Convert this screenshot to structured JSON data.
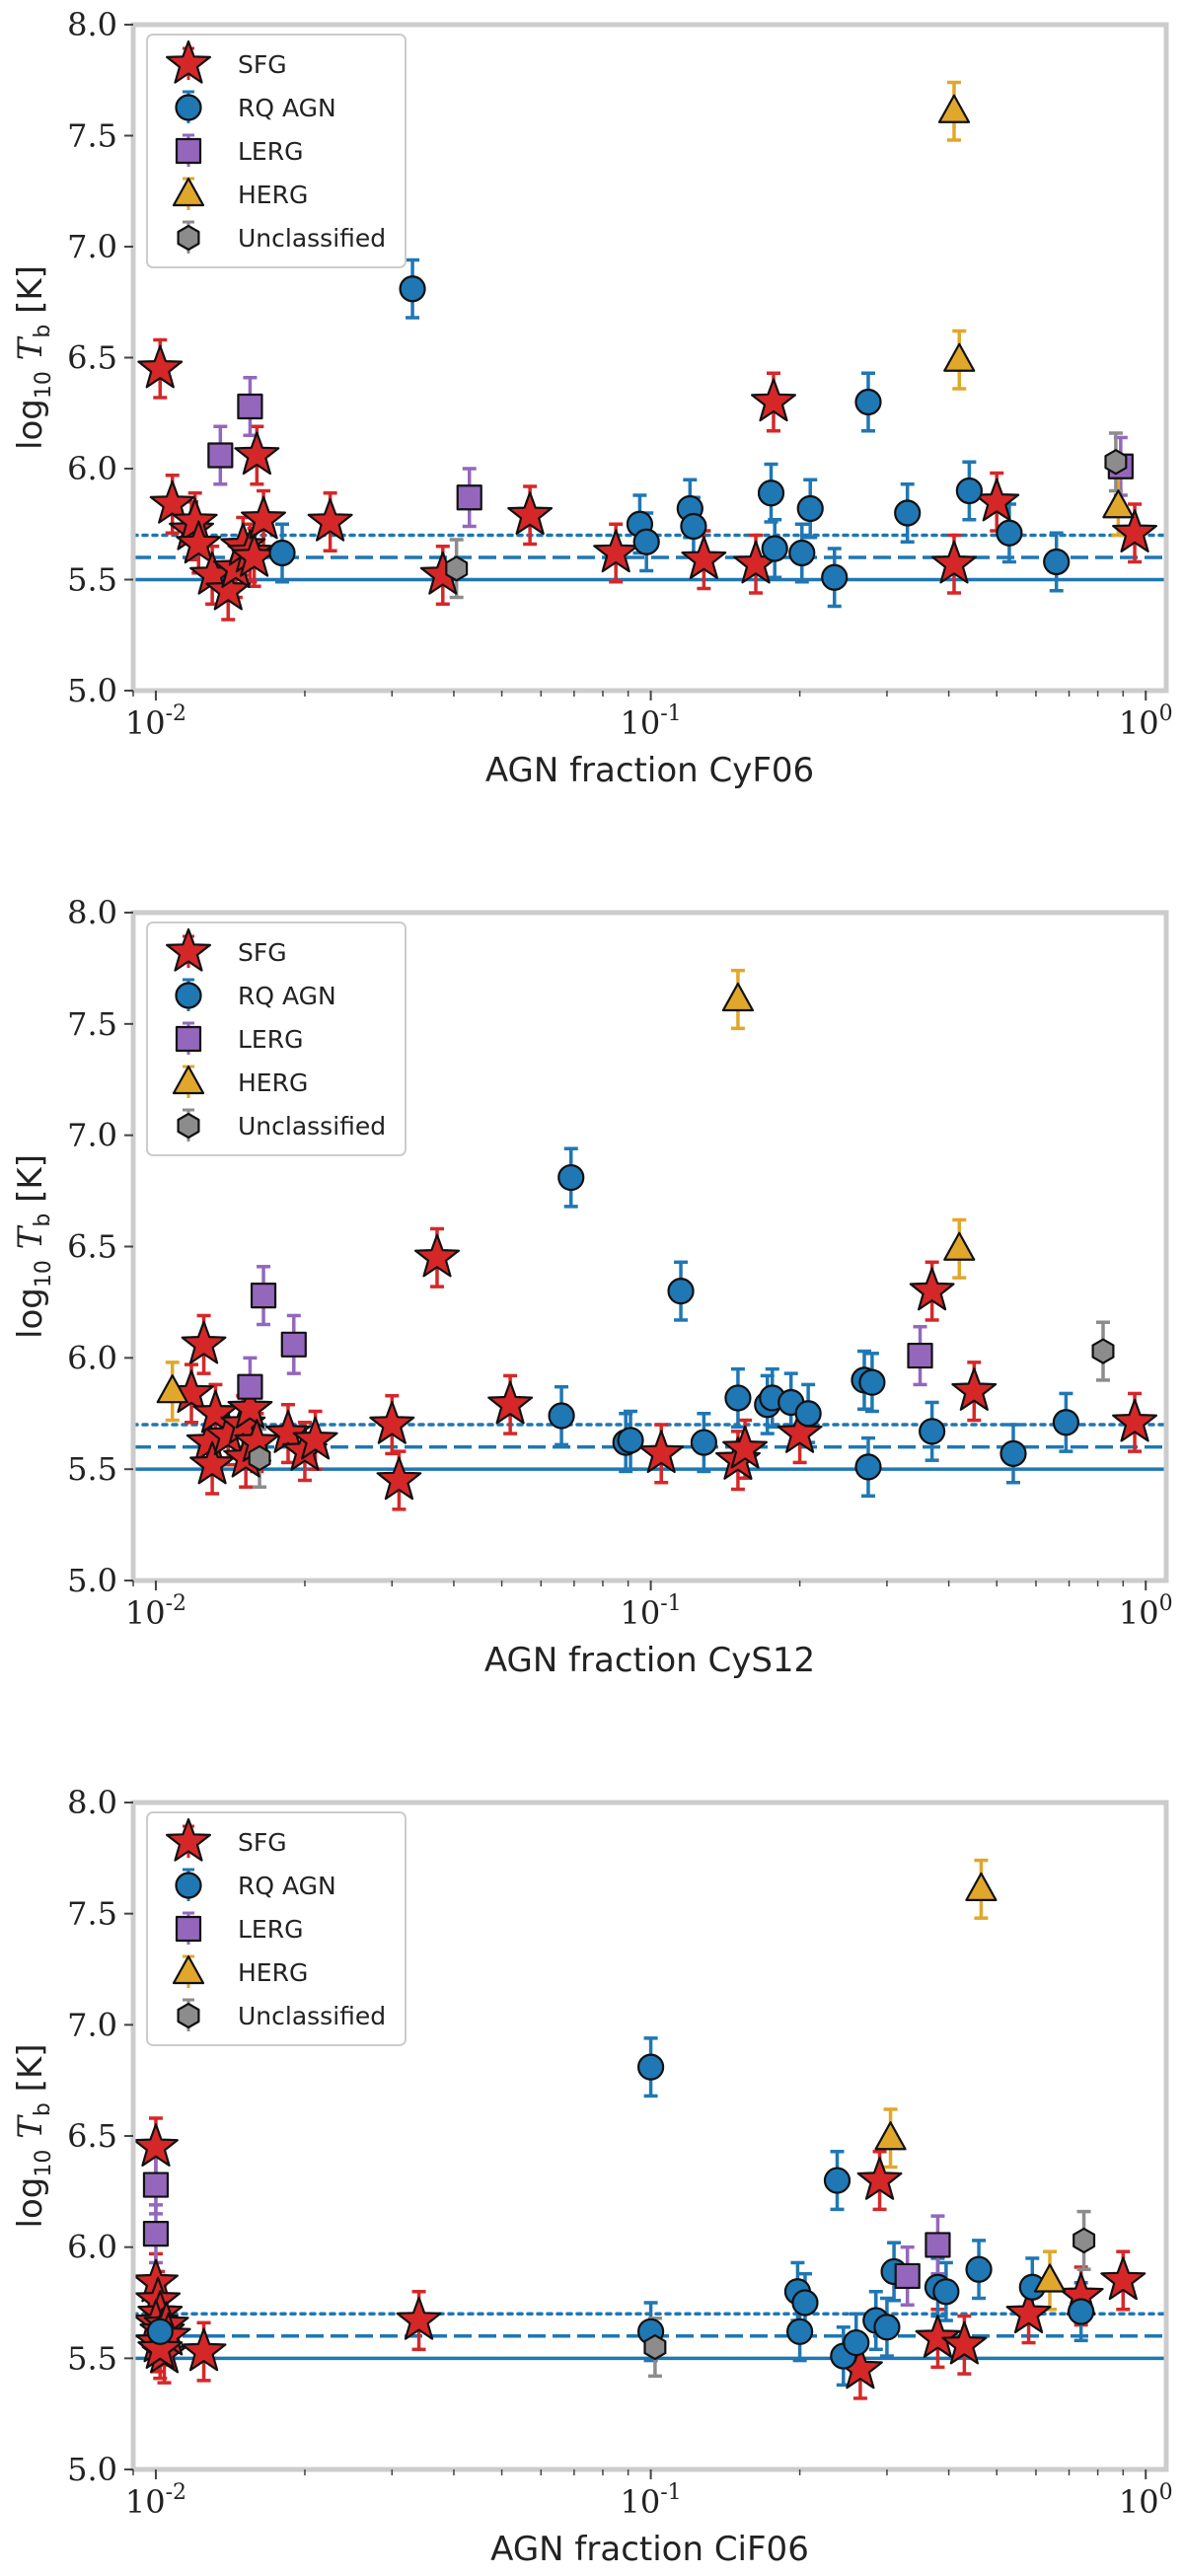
{
  "categories": {
    "SFG": {
      "label": "SFG",
      "color": "#d62728",
      "marker": "star"
    },
    "RQ": {
      "label": "RQ AGN",
      "color": "#1f77b4",
      "marker": "circle"
    },
    "LERG": {
      "label": "LERG",
      "color": "#9467bd",
      "marker": "square"
    },
    "HERG": {
      "label": "HERG",
      "color": "#e1a72b",
      "marker": "triangle"
    },
    "Unc": {
      "label": "Unclassified",
      "color": "#8c8c8c",
      "marker": "hexagon"
    }
  },
  "legend_order": [
    "SFG",
    "RQ",
    "LERG",
    "HERG",
    "Unc"
  ],
  "chart_data": [
    {
      "type": "scatter",
      "xlabel": "AGN fraction CyF06",
      "ylabel": "log10 Tb [K]",
      "xscale": "log",
      "xlim": [
        0.009,
        1.1
      ],
      "ylim": [
        5.0,
        8.0
      ],
      "xticks": [
        "10^-2",
        "10^-1",
        "10^0"
      ],
      "yticks": [
        "5.0",
        "5.5",
        "6.0",
        "6.5",
        "7.0",
        "7.5",
        "8.0"
      ],
      "hlines": [
        {
          "y": 5.5,
          "style": "solid"
        },
        {
          "y": 5.6,
          "style": "dashed"
        },
        {
          "y": 5.7,
          "style": "dotted"
        }
      ],
      "legend": "top-left",
      "series": [
        {
          "cat": "SFG",
          "points": [
            [
              0.0102,
              6.45
            ],
            [
              0.0108,
              5.84
            ],
            [
              0.0118,
              5.72
            ],
            [
              0.012,
              5.76
            ],
            [
              0.0122,
              5.66
            ],
            [
              0.013,
              5.52
            ],
            [
              0.014,
              5.45
            ],
            [
              0.0145,
              5.55
            ],
            [
              0.015,
              5.65
            ],
            [
              0.0155,
              5.62
            ],
            [
              0.016,
              6.06
            ],
            [
              0.0165,
              5.77
            ],
            [
              0.0158,
              5.6
            ],
            [
              0.0225,
              5.76
            ],
            [
              0.038,
              5.52
            ],
            [
              0.057,
              5.79
            ],
            [
              0.085,
              5.62
            ],
            [
              0.128,
              5.59
            ],
            [
              0.163,
              5.57
            ],
            [
              0.177,
              6.3
            ],
            [
              0.41,
              5.57
            ],
            [
              0.5,
              5.85
            ],
            [
              0.95,
              5.71
            ]
          ]
        },
        {
          "cat": "RQ",
          "points": [
            [
              0.018,
              5.62
            ],
            [
              0.033,
              6.81
            ],
            [
              0.095,
              5.75
            ],
            [
              0.098,
              5.67
            ],
            [
              0.12,
              5.82
            ],
            [
              0.122,
              5.74
            ],
            [
              0.175,
              5.89
            ],
            [
              0.178,
              5.64
            ],
            [
              0.202,
              5.62
            ],
            [
              0.21,
              5.82
            ],
            [
              0.235,
              5.51
            ],
            [
              0.275,
              6.3
            ],
            [
              0.33,
              5.8
            ],
            [
              0.44,
              5.9
            ],
            [
              0.53,
              5.71
            ],
            [
              0.66,
              5.58
            ]
          ]
        },
        {
          "cat": "LERG",
          "points": [
            [
              0.0135,
              6.06
            ],
            [
              0.0155,
              6.28
            ],
            [
              0.043,
              5.87
            ],
            [
              0.89,
              6.01
            ]
          ]
        },
        {
          "cat": "HERG",
          "points": [
            [
              0.41,
              7.61
            ],
            [
              0.42,
              6.49
            ],
            [
              0.88,
              5.83
            ]
          ]
        },
        {
          "cat": "Unc",
          "points": [
            [
              0.0405,
              5.55
            ],
            [
              0.87,
              6.03
            ]
          ]
        }
      ]
    },
    {
      "type": "scatter",
      "xlabel": "AGN fraction CyS12",
      "ylabel": "log10 Tb [K]",
      "xscale": "log",
      "xlim": [
        0.009,
        1.1
      ],
      "ylim": [
        5.0,
        8.0
      ],
      "xticks": [
        "10^-2",
        "10^-1",
        "10^0"
      ],
      "yticks": [
        "5.0",
        "5.5",
        "6.0",
        "6.5",
        "7.0",
        "7.5",
        "8.0"
      ],
      "hlines": [
        {
          "y": 5.5,
          "style": "solid"
        },
        {
          "y": 5.6,
          "style": "dashed"
        },
        {
          "y": 5.7,
          "style": "dotted"
        }
      ],
      "legend": "top-left",
      "series": [
        {
          "cat": "SFG",
          "points": [
            [
              0.0118,
              5.84
            ],
            [
              0.0125,
              6.06
            ],
            [
              0.0128,
              5.62
            ],
            [
              0.013,
              5.52
            ],
            [
              0.0132,
              5.75
            ],
            [
              0.014,
              5.65
            ],
            [
              0.015,
              5.7
            ],
            [
              0.0152,
              5.55
            ],
            [
              0.0155,
              5.77
            ],
            [
              0.016,
              5.62
            ],
            [
              0.0185,
              5.66
            ],
            [
              0.02,
              5.58
            ],
            [
              0.021,
              5.63
            ],
            [
              0.03,
              5.7
            ],
            [
              0.031,
              5.45
            ],
            [
              0.037,
              6.45
            ],
            [
              0.052,
              5.79
            ],
            [
              0.105,
              5.57
            ],
            [
              0.15,
              5.54
            ],
            [
              0.155,
              5.59
            ],
            [
              0.2,
              5.66
            ],
            [
              0.37,
              6.3
            ],
            [
              0.45,
              5.85
            ],
            [
              0.95,
              5.71
            ]
          ]
        },
        {
          "cat": "RQ",
          "points": [
            [
              0.066,
              5.74
            ],
            [
              0.069,
              6.81
            ],
            [
              0.089,
              5.62
            ],
            [
              0.091,
              5.63
            ],
            [
              0.115,
              6.3
            ],
            [
              0.128,
              5.62
            ],
            [
              0.15,
              5.82
            ],
            [
              0.172,
              5.79
            ],
            [
              0.176,
              5.82
            ],
            [
              0.192,
              5.8
            ],
            [
              0.208,
              5.75
            ],
            [
              0.27,
              5.9
            ],
            [
              0.275,
              5.51
            ],
            [
              0.28,
              5.89
            ],
            [
              0.37,
              5.67
            ],
            [
              0.54,
              5.57
            ],
            [
              0.69,
              5.71
            ]
          ]
        },
        {
          "cat": "LERG",
          "points": [
            [
              0.0155,
              5.87
            ],
            [
              0.0165,
              6.28
            ],
            [
              0.019,
              6.06
            ],
            [
              0.35,
              6.01
            ]
          ]
        },
        {
          "cat": "HERG",
          "points": [
            [
              0.0108,
              5.85
            ],
            [
              0.15,
              7.61
            ],
            [
              0.42,
              6.49
            ]
          ]
        },
        {
          "cat": "Unc",
          "points": [
            [
              0.0162,
              5.55
            ],
            [
              0.82,
              6.03
            ]
          ]
        }
      ]
    },
    {
      "type": "scatter",
      "xlabel": "AGN fraction CiF06",
      "ylabel": "log10 Tb [K]",
      "xscale": "log",
      "xlim": [
        0.009,
        1.1
      ],
      "ylim": [
        5.0,
        8.0
      ],
      "xticks": [
        "10^-2",
        "10^-1",
        "10^0"
      ],
      "yticks": [
        "5.0",
        "5.5",
        "6.0",
        "6.5",
        "7.0",
        "7.5",
        "8.0"
      ],
      "hlines": [
        {
          "y": 5.5,
          "style": "solid"
        },
        {
          "y": 5.6,
          "style": "dashed"
        },
        {
          "y": 5.7,
          "style": "dotted"
        }
      ],
      "legend": "top-left",
      "series": [
        {
          "cat": "SFG",
          "points": [
            [
              0.01,
              6.45
            ],
            [
              0.01,
              5.84
            ],
            [
              0.0101,
              5.76
            ],
            [
              0.0102,
              5.7
            ],
            [
              0.01,
              5.66
            ],
            [
              0.0103,
              5.62
            ],
            [
              0.0101,
              5.57
            ],
            [
              0.0104,
              5.52
            ],
            [
              0.0105,
              5.65
            ],
            [
              0.0106,
              5.6
            ],
            [
              0.0102,
              5.54
            ],
            [
              0.0125,
              5.53
            ],
            [
              0.034,
              5.67
            ],
            [
              0.265,
              5.45
            ],
            [
              0.29,
              6.3
            ],
            [
              0.38,
              5.59
            ],
            [
              0.43,
              5.56
            ],
            [
              0.58,
              5.7
            ],
            [
              0.74,
              5.78
            ],
            [
              0.9,
              5.85
            ]
          ]
        },
        {
          "cat": "RQ",
          "points": [
            [
              0.0102,
              5.62
            ],
            [
              0.1,
              6.81
            ],
            [
              0.1,
              5.62
            ],
            [
              0.198,
              5.8
            ],
            [
              0.2,
              5.62
            ],
            [
              0.205,
              5.75
            ],
            [
              0.238,
              6.3
            ],
            [
              0.245,
              5.51
            ],
            [
              0.26,
              5.57
            ],
            [
              0.285,
              5.67
            ],
            [
              0.3,
              5.64
            ],
            [
              0.31,
              5.89
            ],
            [
              0.38,
              5.82
            ],
            [
              0.395,
              5.8
            ],
            [
              0.46,
              5.9
            ],
            [
              0.59,
              5.82
            ],
            [
              0.74,
              5.71
            ]
          ]
        },
        {
          "cat": "LERG",
          "points": [
            [
              0.01,
              6.28
            ],
            [
              0.01,
              6.06
            ],
            [
              0.33,
              5.87
            ],
            [
              0.38,
              6.01
            ]
          ]
        },
        {
          "cat": "HERG",
          "points": [
            [
              0.305,
              6.49
            ],
            [
              0.465,
              7.61
            ],
            [
              0.64,
              5.85
            ]
          ]
        },
        {
          "cat": "Unc",
          "points": [
            [
              0.102,
              5.55
            ],
            [
              0.75,
              6.03
            ]
          ]
        }
      ]
    }
  ]
}
